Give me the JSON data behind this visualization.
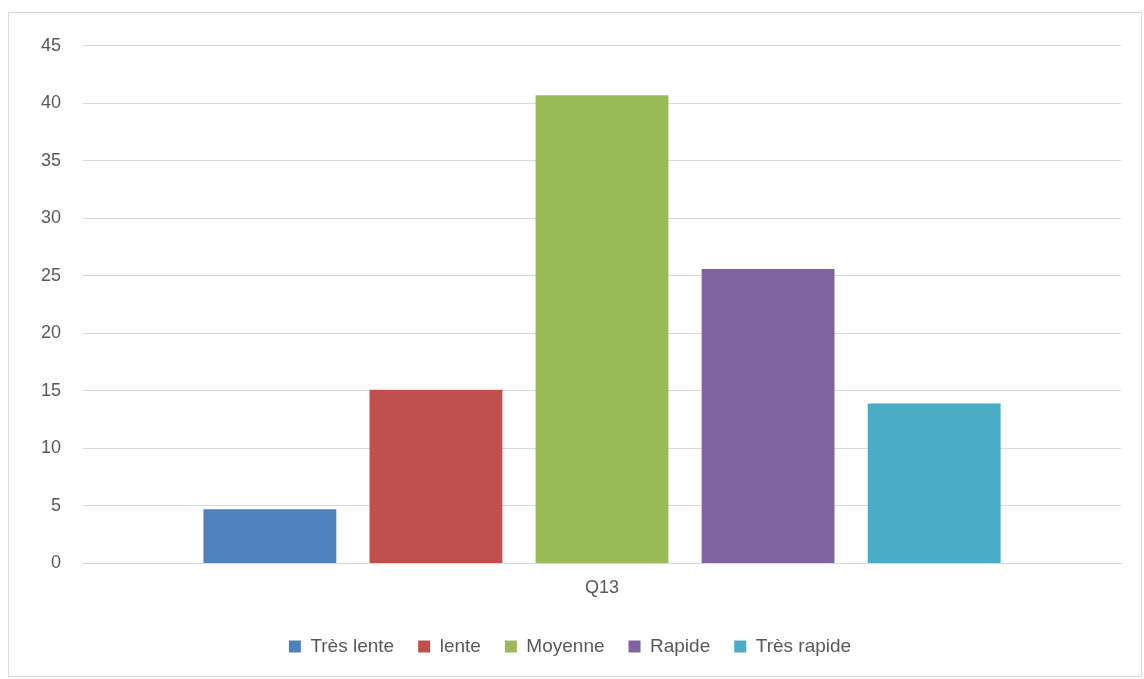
{
  "chart_data": {
    "type": "bar",
    "categories": [
      "Q13"
    ],
    "series": [
      {
        "name": "Très lente",
        "color": "#4f81bd",
        "values": [
          4.7
        ]
      },
      {
        "name": "lente",
        "color": "#c0504d",
        "values": [
          15.1
        ]
      },
      {
        "name": "Moyenne",
        "color": "#9bbb59",
        "values": [
          40.7
        ]
      },
      {
        "name": "Rapide",
        "color": "#8064a2",
        "values": [
          25.6
        ]
      },
      {
        "name": "Très rapide",
        "color": "#4bacc6",
        "values": [
          13.9
        ]
      }
    ],
    "ylim": [
      0,
      45
    ],
    "yticks": [
      0,
      5,
      10,
      15,
      20,
      25,
      30,
      35,
      40,
      45
    ],
    "grid": "y",
    "legend": "bottom"
  }
}
